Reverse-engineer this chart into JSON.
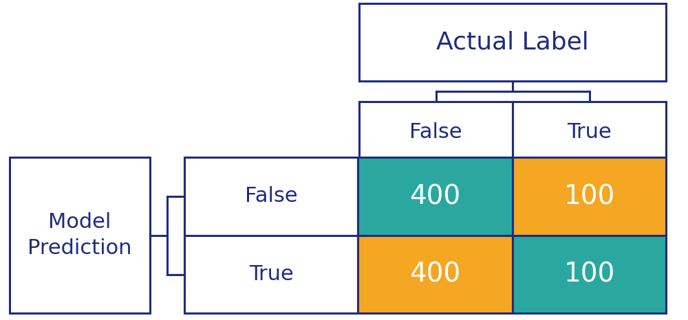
{
  "title_actual": "Actual Label",
  "title_model": "Model\nPrediction",
  "col_labels": [
    "False",
    "True"
  ],
  "row_labels": [
    "False",
    "True"
  ],
  "values": [
    [
      400,
      100
    ],
    [
      400,
      100
    ]
  ],
  "cell_colors": [
    [
      "#2aa8a0",
      "#f5a623"
    ],
    [
      "#f5a623",
      "#2aa8a0"
    ]
  ],
  "text_color_cells": "#ffffff",
  "text_color_headers": "#1e2d7d",
  "border_color": "#1e2d7d",
  "bg_color": "#ffffff"
}
